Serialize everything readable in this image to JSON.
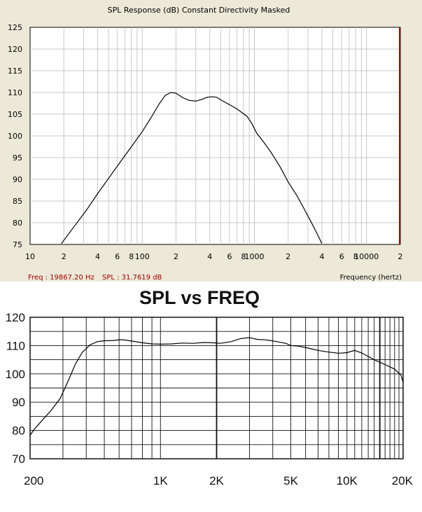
{
  "chart_data": [
    {
      "type": "line",
      "title": "SPL Response (dB)   Constant Directivity   Masked",
      "xlabel": "Frequency (hertz)",
      "ylabel": "",
      "xscale": "log",
      "xlim": [
        10,
        20000
      ],
      "ylim": [
        75,
        125
      ],
      "y_ticks": [
        "125",
        "120",
        "115",
        "110",
        "105",
        "100",
        "95",
        "90",
        "85",
        "80",
        "75"
      ],
      "x_ticks": [
        {
          "value": 10,
          "label": "10"
        },
        {
          "value": 20,
          "label": "2"
        },
        {
          "value": 40,
          "label": "4"
        },
        {
          "value": 60,
          "label": "6"
        },
        {
          "value": 80,
          "label": "8"
        },
        {
          "value": 100,
          "label": "100"
        },
        {
          "value": 200,
          "label": "2"
        },
        {
          "value": 400,
          "label": "4"
        },
        {
          "value": 600,
          "label": "6"
        },
        {
          "value": 800,
          "label": "8"
        },
        {
          "value": 1000,
          "label": "1000"
        },
        {
          "value": 2000,
          "label": "2"
        },
        {
          "value": 4000,
          "label": "4"
        },
        {
          "value": 6000,
          "label": "6"
        },
        {
          "value": 8000,
          "label": "8"
        },
        {
          "value": 10000,
          "label": "10000"
        },
        {
          "value": 20000,
          "label": "2"
        }
      ],
      "readout": {
        "freq": "Freq : 19867.20 Hz",
        "spl": "SPL : 31.7619 dB"
      },
      "series": [
        {
          "name": "SPL",
          "color": "#000000",
          "x": [
            19,
            25,
            32,
            40,
            50,
            63,
            80,
            100,
            120,
            140,
            160,
            180,
            200,
            230,
            260,
            300,
            340,
            380,
            420,
            460,
            500,
            560,
            620,
            700,
            780,
            860,
            950,
            1050,
            1200,
            1400,
            1700,
            2000,
            2400,
            2800,
            3200,
            3600,
            4000
          ],
          "y": [
            75.2,
            79.3,
            83.0,
            86.7,
            90.2,
            93.8,
            97.5,
            101.0,
            104.2,
            107.2,
            109.3,
            110.0,
            109.8,
            108.8,
            108.2,
            108.0,
            108.4,
            108.9,
            109.0,
            108.9,
            108.3,
            107.6,
            107.0,
            106.2,
            105.3,
            104.5,
            102.8,
            100.6,
            98.7,
            96.3,
            92.8,
            89.4,
            86.2,
            83.0,
            80.2,
            77.6,
            75.2
          ]
        }
      ]
    },
    {
      "type": "line",
      "title": "SPL vs FREQ",
      "xlabel": "",
      "ylabel": "",
      "xscale": "log",
      "xlim": [
        200,
        20000
      ],
      "ylim": [
        70,
        120
      ],
      "y_ticks": [
        "120",
        "110",
        "100",
        "90",
        "80",
        "70"
      ],
      "x_ticks": [
        {
          "value": 200,
          "label": "200"
        },
        {
          "value": 1000,
          "label": "1K"
        },
        {
          "value": 2000,
          "label": "2K"
        },
        {
          "value": 5000,
          "label": "5K"
        },
        {
          "value": 10000,
          "label": "10K"
        },
        {
          "value": 20000,
          "label": "20K"
        }
      ],
      "series": [
        {
          "name": "SPL",
          "color": "#000000",
          "x": [
            200,
            210,
            230,
            260,
            290,
            320,
            350,
            380,
            420,
            460,
            500,
            560,
            620,
            700,
            800,
            900,
            1000,
            1150,
            1300,
            1500,
            1700,
            1900,
            2100,
            2400,
            2700,
            3000,
            3300,
            3700,
            4200,
            4700,
            5000,
            5500,
            6200,
            7000,
            8000,
            9000,
            10000,
            11000,
            12000,
            14000,
            16000,
            18000,
            19500,
            20000
          ],
          "y": [
            78.3,
            80.3,
            83.3,
            87.2,
            91.3,
            97.5,
            103.5,
            107.5,
            110.3,
            111.4,
            111.7,
            111.8,
            112.1,
            111.6,
            111.0,
            110.6,
            110.5,
            110.6,
            110.9,
            110.8,
            111.1,
            111.0,
            110.8,
            111.4,
            112.5,
            112.8,
            112.2,
            112.0,
            111.4,
            110.8,
            110.0,
            109.8,
            109.1,
            108.3,
            107.7,
            107.3,
            107.5,
            108.3,
            107.4,
            105.0,
            103.3,
            101.7,
            99.5,
            97.0
          ]
        }
      ]
    }
  ]
}
